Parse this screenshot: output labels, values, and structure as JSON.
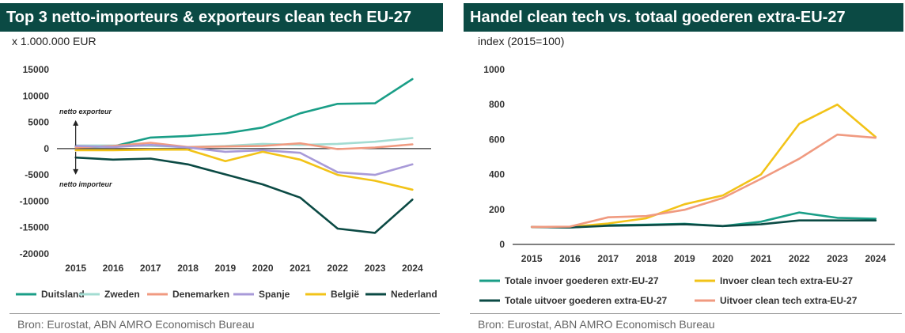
{
  "left": {
    "title": "Top 3 netto-importeurs & exporteurs clean tech EU-27",
    "unit": "x 1.000.000 EUR",
    "source": "Bron: Eurostat, ABN AMRO Economisch Bureau",
    "annotations": {
      "export": "netto exporteur",
      "import": "netto importeur"
    }
  },
  "right": {
    "title": "Handel clean tech vs. totaal goederen extra-EU-27",
    "unit": "index (2015=100)",
    "source": "Bron: Eurostat, ABN AMRO Economisch Bureau"
  },
  "chart_data": [
    {
      "type": "line",
      "title": "Top 3 netto-importeurs & exporteurs clean tech EU-27",
      "ylabel": "x 1.000.000 EUR",
      "x": [
        "2015",
        "2016",
        "2017",
        "2018",
        "2019",
        "2020",
        "2021",
        "2022",
        "2023",
        "2024"
      ],
      "ylim": [
        -20000,
        15000
      ],
      "yticks": [
        -20000,
        -15000,
        -10000,
        -5000,
        0,
        5000,
        10000,
        15000
      ],
      "grid": false,
      "legend": "bottom",
      "series": [
        {
          "name": "Duitsland",
          "color": "#1a9e87",
          "values": [
            300,
            400,
            2100,
            2400,
            2900,
            4000,
            6700,
            8500,
            8600,
            13200
          ]
        },
        {
          "name": "Zweden",
          "color": "#a3dcd2",
          "values": [
            600,
            600,
            500,
            300,
            500,
            900,
            700,
            900,
            1300,
            2000
          ]
        },
        {
          "name": "Denemarken",
          "color": "#f09a80",
          "values": [
            200,
            500,
            1100,
            300,
            400,
            500,
            1000,
            -100,
            200,
            800
          ]
        },
        {
          "name": "Spanje",
          "color": "#a89ad8",
          "values": [
            500,
            300,
            700,
            200,
            -600,
            -300,
            -800,
            -4500,
            -5000,
            -3000
          ]
        },
        {
          "name": "België",
          "color": "#f2c318",
          "values": [
            -300,
            -300,
            -200,
            -200,
            -2400,
            -600,
            -2100,
            -5000,
            -6100,
            -7800
          ]
        },
        {
          "name": "Nederland",
          "color": "#0b4a44",
          "values": [
            -1700,
            -2100,
            -1900,
            -3000,
            -4900,
            -6800,
            -9300,
            -15200,
            -16000,
            -9700
          ]
        }
      ]
    },
    {
      "type": "line",
      "title": "Handel clean tech vs. totaal goederen extra-EU-27",
      "ylabel": "index (2015=100)",
      "x": [
        "2015",
        "2016",
        "2017",
        "2018",
        "2019",
        "2020",
        "2021",
        "2022",
        "2023",
        "2024"
      ],
      "ylim": [
        0,
        1000
      ],
      "yticks": [
        0,
        200,
        400,
        600,
        800,
        1000
      ],
      "grid": false,
      "legend": "bottom",
      "series": [
        {
          "name": "Totale invoer goederen extr-EU-27",
          "color": "#1a9e87",
          "values": [
            100,
            97,
            110,
            113,
            118,
            105,
            130,
            183,
            152,
            147
          ]
        },
        {
          "name": "Invoer clean tech extra-EU-27",
          "color": "#f2c318",
          "values": [
            100,
            100,
            120,
            150,
            230,
            280,
            400,
            690,
            800,
            615
          ]
        },
        {
          "name": "Totale uitvoer goederen extra-EU-27",
          "color": "#0b4a44",
          "values": [
            100,
            97,
            107,
            110,
            115,
            105,
            115,
            137,
            137,
            137
          ]
        },
        {
          "name": "Uitvoer clean tech extra-EU-27",
          "color": "#f09a80",
          "values": [
            100,
            102,
            155,
            162,
            198,
            265,
            375,
            490,
            628,
            610
          ]
        }
      ]
    }
  ]
}
